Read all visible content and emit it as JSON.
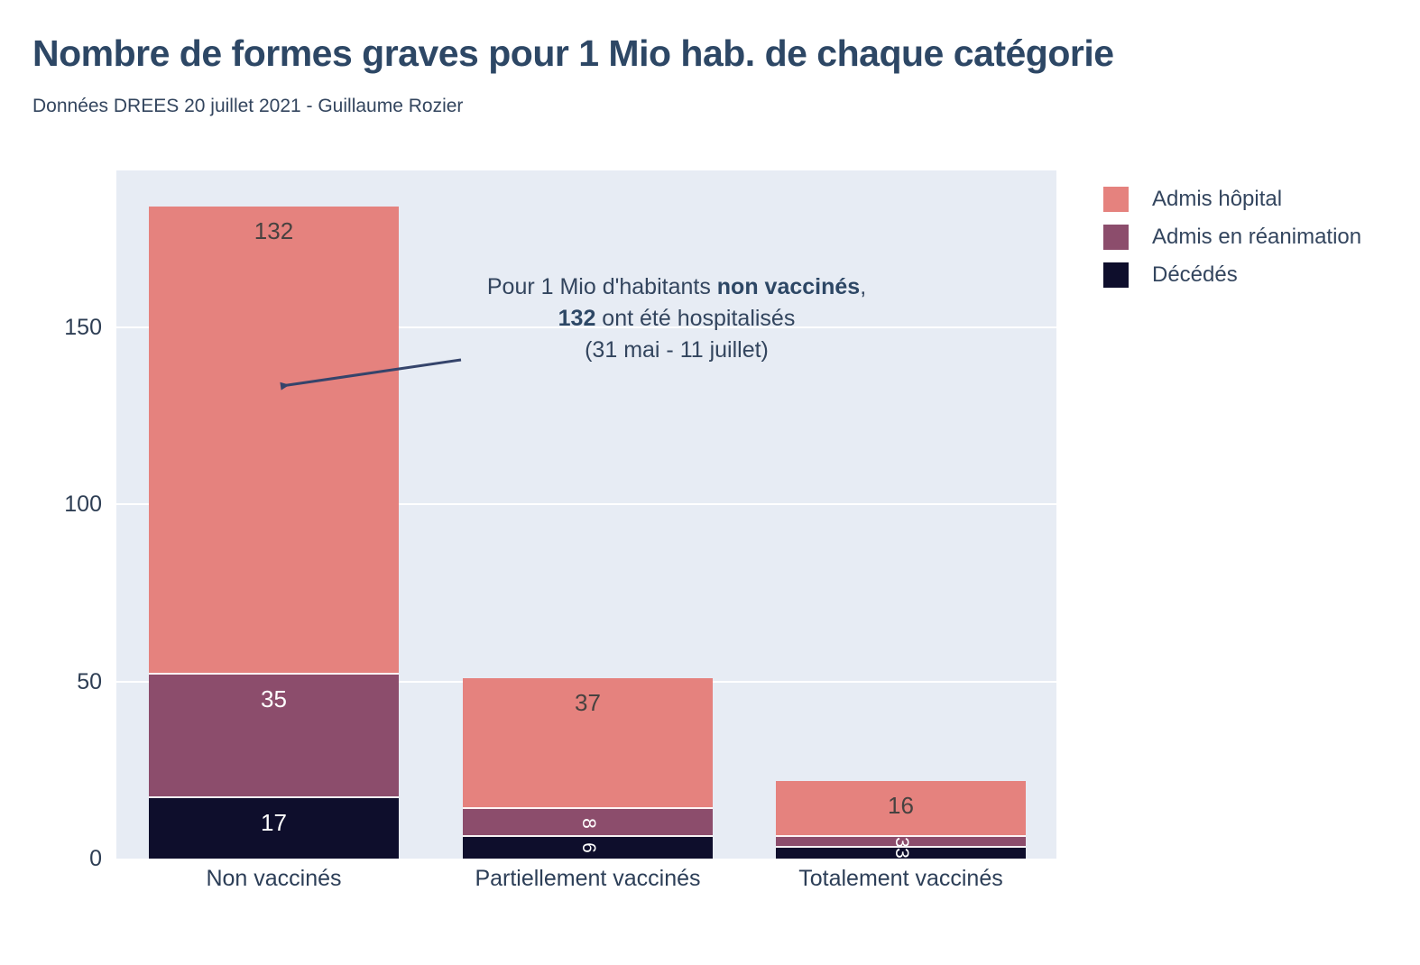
{
  "title": "Nombre de formes graves pour 1 Mio hab. de chaque catégorie",
  "subtitle": "Données DREES 20 juillet 2021 - Guillaume Rozier",
  "colors": {
    "background": "#ffffff",
    "plot_background": "#e7ecf4",
    "gridline": "#ffffff",
    "title_text": "#2d4765",
    "text": "#33455e",
    "annotation_arrow": "#35446b",
    "inside_label_on_light": "#474240",
    "inside_label_on_dark": "#ffffff"
  },
  "chart_data": {
    "type": "bar",
    "stacked": true,
    "title": "Nombre de formes graves pour 1 Mio hab. de chaque catégorie",
    "xlabel": "",
    "ylabel": "",
    "categories": [
      "Non vaccinés",
      "Partiellement vaccinés",
      "Totalement vaccinés"
    ],
    "series": [
      {
        "name": "Admis hôpital",
        "color": "#e5827e",
        "values": [
          132,
          37,
          16
        ]
      },
      {
        "name": "Admis en réanimation",
        "color": "#8c4d6c",
        "values": [
          35,
          8,
          3
        ]
      },
      {
        "name": "Décédés",
        "color": "#0e0e2c",
        "values": [
          17,
          6,
          3
        ]
      }
    ],
    "yticks": [
      0,
      50,
      100,
      150
    ],
    "ylim": [
      0,
      193
    ],
    "grid": true,
    "legend_position": "top-right"
  },
  "annotation": {
    "line1_prefix": "Pour 1 Mio d'habitants ",
    "line1_bold": "non vaccinés",
    "line1_suffix": ",",
    "line2_bold": "132",
    "line2_suffix": " ont été hospitalisés",
    "line3": "(31 mai - 11 juillet)"
  }
}
